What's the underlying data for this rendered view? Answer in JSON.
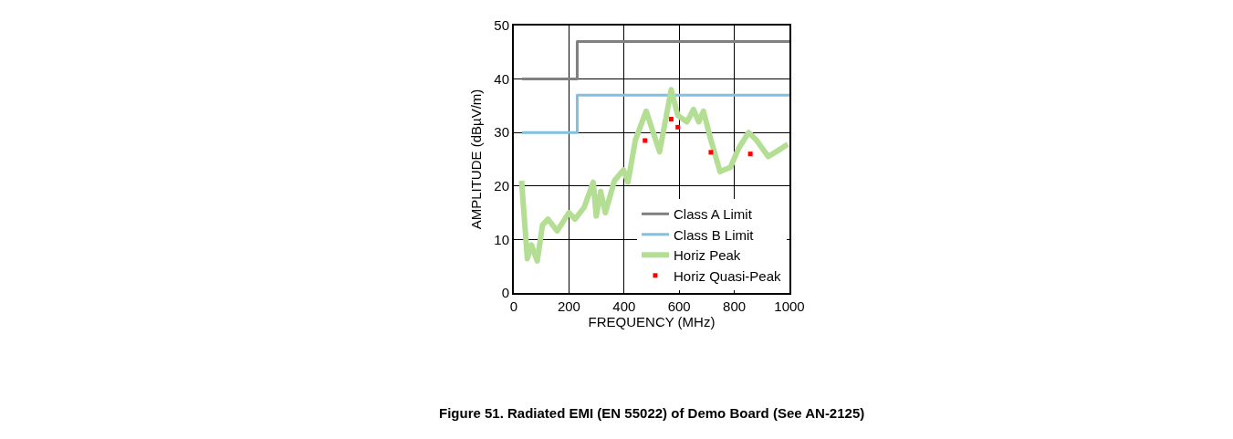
{
  "chart_data": {
    "type": "line",
    "xlabel": "FREQUENCY (MHz)",
    "ylabel": "AMPLITUDE (dBµV/m)",
    "annotations": [
      "Figure 51. Radiated EMI (EN 55022) of Demo Board (See AN-2125)"
    ],
    "xlim": [
      0,
      1000
    ],
    "xticks": [
      0,
      200,
      400,
      600,
      800,
      1000
    ],
    "ylim": [
      0,
      50
    ],
    "yticks": [
      0,
      10,
      20,
      30,
      40,
      50
    ],
    "grid": true,
    "legend": "bottom right",
    "line_style": "solid",
    "series": [
      {
        "name": "Class A Limit",
        "type": "step",
        "color": "#808080",
        "x": [
          30,
          230,
          230,
          1000
        ],
        "values": [
          40,
          40,
          47,
          47
        ]
      },
      {
        "name": "Class B Limit",
        "type": "step",
        "color": "#80c0e0",
        "x": [
          30,
          230,
          230,
          1000
        ],
        "values": [
          30,
          30,
          37,
          37
        ]
      },
      {
        "name": "Horiz Peak",
        "color": "#b3de93",
        "x": [
          28,
          49,
          64,
          74,
          85,
          104,
          124,
          157,
          200,
          222,
          255,
          288,
          299,
          315,
          332,
          365,
          398,
          414,
          441,
          480,
          529,
          571,
          595,
          628,
          652,
          671,
          688,
          715,
          748,
          786,
          814,
          852,
          880,
          923,
          967,
          994
        ],
        "values": [
          21,
          6.4,
          9,
          7.5,
          6,
          12.7,
          13.8,
          11.6,
          15,
          13.8,
          16,
          20.7,
          14.4,
          19,
          15,
          21,
          23,
          20.7,
          28.6,
          34,
          26.4,
          38,
          33.2,
          32,
          34.3,
          32,
          34,
          28.6,
          22.7,
          23.5,
          26.9,
          30,
          28.6,
          25.5,
          26.9,
          27.8
        ]
      },
      {
        "name": "Horiz Quasi-Peak",
        "type": "scatter",
        "marker": "square",
        "color": "#ff0000",
        "x": [
          476,
          571,
          595,
          715,
          858
        ],
        "values": [
          28.5,
          32.5,
          31,
          26.3,
          26
        ]
      }
    ]
  }
}
